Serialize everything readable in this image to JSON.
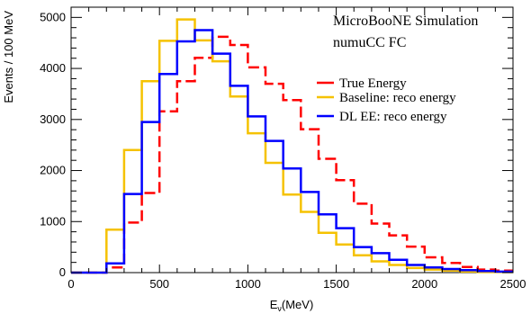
{
  "chart_data": {
    "type": "line",
    "step": true,
    "annotation": {
      "line1": "MicroBooNE Simulation",
      "line2": "numuCC FC"
    },
    "xlabel": {
      "symbol": "E",
      "subscript": "ν",
      "unit": "(MeV)"
    },
    "ylabel": "Events / 100 MeV",
    "xlim": [
      0,
      2500
    ],
    "ylim": [
      0,
      5200
    ],
    "xticks": [
      "0",
      "500",
      "1000",
      "1500",
      "2000",
      "2500"
    ],
    "yticks": [
      "0",
      "1000",
      "2000",
      "3000",
      "4000",
      "5000"
    ],
    "legend_position": "top-right",
    "bin_width": 100,
    "bin_edges_start": 0,
    "series": [
      {
        "name": "True Energy",
        "color": "#ff0000",
        "dash": "dashed",
        "values": [
          0,
          0,
          100,
          980,
          1560,
          3160,
          3750,
          4210,
          4620,
          4460,
          4020,
          3700,
          3380,
          2810,
          2230,
          1810,
          1350,
          960,
          730,
          510,
          300,
          190,
          110,
          60,
          40
        ]
      },
      {
        "name": "Baseline: reco energy",
        "color": "#f5c200",
        "dash": "solid",
        "values": [
          0,
          0,
          840,
          2400,
          3750,
          4540,
          4960,
          4550,
          4140,
          3450,
          2730,
          2150,
          1530,
          1190,
          780,
          550,
          340,
          220,
          150,
          90,
          60,
          40,
          20,
          10,
          10
        ]
      },
      {
        "name": "DL EE: reco energy",
        "color": "#0000ff",
        "dash": "solid",
        "values": [
          0,
          0,
          180,
          1540,
          2950,
          3890,
          4530,
          4750,
          4290,
          3660,
          3060,
          2580,
          2040,
          1580,
          1140,
          870,
          500,
          380,
          250,
          150,
          100,
          70,
          50,
          30,
          20
        ]
      }
    ]
  }
}
